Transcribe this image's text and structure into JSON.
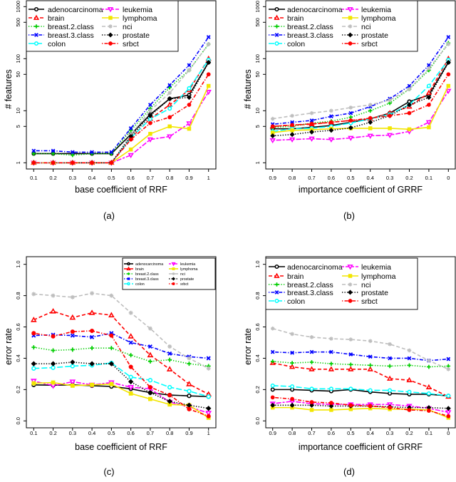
{
  "series_styles": [
    {
      "name": "adenocarcinoma",
      "color": "#000000",
      "line": "solid",
      "marker": "circle-open"
    },
    {
      "name": "brain",
      "color": "#ff0000",
      "line": "dashed",
      "marker": "triangle"
    },
    {
      "name": "breast.2.class",
      "color": "#00cd00",
      "line": "dotted",
      "marker": "plus"
    },
    {
      "name": "breast.3.class",
      "color": "#0000ff",
      "line": "dotdash",
      "marker": "cross"
    },
    {
      "name": "colon",
      "color": "#00ffff",
      "line": "longdash",
      "marker": "circle-open"
    },
    {
      "name": "leukemia",
      "color": "#ff00ff",
      "line": "twodash",
      "marker": "triangle-down"
    },
    {
      "name": "lymphoma",
      "color": "#f2e600",
      "line": "solid",
      "marker": "square"
    },
    {
      "name": "nci",
      "color": "#bebebe",
      "line": "dashed",
      "marker": "star"
    },
    {
      "name": "prostate",
      "color": "#000000",
      "line": "dotted",
      "marker": "diamond"
    },
    {
      "name": "srbct",
      "color": "#ff0000",
      "line": "dotdash",
      "marker": "circle"
    }
  ],
  "chart_data": [
    {
      "type": "line",
      "caption": "(a)",
      "xlabel": "base coefficient of RRF",
      "ylabel": "# features",
      "y_scale": "log",
      "ylim": [
        1,
        1000
      ],
      "x_ticks": [
        "0.1",
        "0.2",
        "0.3",
        "0.4",
        "0.5",
        "0.6",
        "0.7",
        "0.8",
        "0.9",
        "1"
      ],
      "y_ticks": [
        "1",
        "5",
        "10",
        "50",
        "100",
        "500",
        "1000"
      ],
      "legend": "top-left",
      "grid": false,
      "x": [
        0.1,
        0.2,
        0.3,
        0.4,
        0.5,
        0.6,
        0.7,
        0.8,
        0.9,
        1
      ],
      "series": [
        {
          "name": "adenocarcinoma",
          "values": [
            1.5,
            1.5,
            1.5,
            1.5,
            1.5,
            3.5,
            8.5,
            17,
            20,
            85
          ]
        },
        {
          "name": "brain",
          "values": [
            1,
            1,
            1,
            1,
            1,
            3,
            7,
            13,
            25,
            100
          ]
        },
        {
          "name": "breast.2.class",
          "values": [
            1.5,
            1.5,
            1.4,
            1.5,
            1.5,
            4.2,
            11,
            28,
            60,
            190
          ]
        },
        {
          "name": "breast.3.class",
          "values": [
            1.7,
            1.7,
            1.6,
            1.6,
            1.6,
            4.6,
            13,
            31,
            75,
            260
          ]
        },
        {
          "name": "colon",
          "values": [
            1,
            1,
            1,
            1,
            1,
            3,
            7,
            11,
            27,
            95
          ]
        },
        {
          "name": "leukemia",
          "values": [
            1,
            1,
            1,
            1,
            1,
            1.4,
            2.8,
            3.2,
            5.7,
            23
          ]
        },
        {
          "name": "lymphoma",
          "values": [
            1,
            1,
            1,
            1,
            1,
            1.8,
            3.6,
            5,
            4.5,
            30
          ]
        },
        {
          "name": "nci",
          "values": [
            1,
            1,
            1,
            1,
            1,
            3.5,
            10,
            22,
            60,
            190
          ]
        },
        {
          "name": "prostate",
          "values": [
            1,
            1,
            1,
            1,
            1,
            3.2,
            8,
            17,
            18,
            85
          ]
        },
        {
          "name": "srbct",
          "values": [
            1,
            1,
            1,
            1,
            1,
            2.8,
            5.8,
            7.5,
            13,
            50
          ]
        }
      ]
    },
    {
      "type": "line",
      "caption": "(b)",
      "xlabel": "importance coefficient of GRRF",
      "ylabel": "# features",
      "y_scale": "log",
      "ylim": [
        1,
        1000
      ],
      "x_ticks": [
        "0.9",
        "0.8",
        "0.7",
        "0.6",
        "0.5",
        "0.4",
        "0.3",
        "0.2",
        "0.1",
        "0"
      ],
      "y_ticks": [
        "1",
        "5",
        "10",
        "50",
        "100",
        "500",
        "1000"
      ],
      "legend": "top-left",
      "grid": false,
      "x": [
        0.9,
        0.8,
        0.7,
        0.6,
        0.5,
        0.4,
        0.3,
        0.2,
        0.1,
        0
      ],
      "series": [
        {
          "name": "adenocarcinoma",
          "values": [
            4.5,
            4.5,
            4.8,
            5.2,
            6,
            7,
            9,
            15,
            20,
            85
          ]
        },
        {
          "name": "brain",
          "values": [
            5,
            5.3,
            5.5,
            6,
            6.5,
            7,
            9,
            12,
            22,
            100
          ]
        },
        {
          "name": "breast.2.class",
          "values": [
            4.8,
            5,
            5.8,
            6.3,
            7.5,
            10,
            14,
            26,
            60,
            200
          ]
        },
        {
          "name": "breast.3.class",
          "values": [
            5.5,
            6,
            6.5,
            7.8,
            9,
            12,
            17,
            30,
            75,
            260
          ]
        },
        {
          "name": "colon",
          "values": [
            4,
            4.5,
            4.6,
            5,
            5.8,
            7,
            8.5,
            13,
            30,
            95
          ]
        },
        {
          "name": "leukemia",
          "values": [
            2.7,
            2.8,
            2.9,
            2.8,
            3,
            3.3,
            3.4,
            4,
            6,
            24
          ]
        },
        {
          "name": "lymphoma",
          "values": [
            3.8,
            4.2,
            4.3,
            4.5,
            4.6,
            4.6,
            4.6,
            4.4,
            4.8,
            30
          ]
        },
        {
          "name": "nci",
          "values": [
            7,
            8,
            9,
            10,
            11.5,
            13,
            16,
            26,
            65,
            190
          ]
        },
        {
          "name": "prostate",
          "values": [
            3.3,
            3.5,
            3.9,
            4.2,
            4.7,
            6,
            8,
            13,
            18,
            85
          ]
        },
        {
          "name": "srbct",
          "values": [
            5,
            5.3,
            5.6,
            6,
            6.5,
            7.2,
            8,
            9,
            13,
            50
          ]
        }
      ]
    },
    {
      "type": "line",
      "caption": "(c)",
      "xlabel": "base coefficient of RRF",
      "ylabel": "error rate",
      "y_scale": "linear",
      "ylim": [
        0,
        1
      ],
      "x_ticks": [
        "0.1",
        "0.2",
        "0.3",
        "0.4",
        "0.5",
        "0.6",
        "0.7",
        "0.8",
        "0.9",
        "1"
      ],
      "y_ticks": [
        "0.0",
        "0.2",
        "0.4",
        "0.6",
        "0.8",
        "1.0"
      ],
      "legend": "top-right",
      "grid": false,
      "x": [
        0.1,
        0.2,
        0.3,
        0.4,
        0.5,
        0.6,
        0.7,
        0.8,
        0.9,
        1
      ],
      "series": [
        {
          "name": "adenocarcinoma",
          "values": [
            0.23,
            0.228,
            0.23,
            0.225,
            0.22,
            0.205,
            0.18,
            0.165,
            0.16,
            0.155
          ]
        },
        {
          "name": "brain",
          "values": [
            0.645,
            0.7,
            0.66,
            0.69,
            0.675,
            0.54,
            0.42,
            0.33,
            0.235,
            0.17
          ]
        },
        {
          "name": "breast.2.class",
          "values": [
            0.47,
            0.45,
            0.455,
            0.465,
            0.465,
            0.42,
            0.38,
            0.39,
            0.365,
            0.35
          ]
        },
        {
          "name": "breast.3.class",
          "values": [
            0.545,
            0.55,
            0.545,
            0.535,
            0.56,
            0.5,
            0.475,
            0.43,
            0.41,
            0.4
          ]
        },
        {
          "name": "colon",
          "values": [
            0.335,
            0.34,
            0.35,
            0.355,
            0.37,
            0.28,
            0.26,
            0.215,
            0.19,
            0.155
          ]
        },
        {
          "name": "leukemia",
          "values": [
            0.255,
            0.225,
            0.25,
            0.23,
            0.245,
            0.215,
            0.205,
            0.12,
            0.09,
            0.05
          ]
        },
        {
          "name": "lymphoma",
          "values": [
            0.24,
            0.245,
            0.225,
            0.23,
            0.235,
            0.175,
            0.14,
            0.105,
            0.1,
            0.02
          ]
        },
        {
          "name": "nci",
          "values": [
            0.81,
            0.8,
            0.79,
            0.815,
            0.8,
            0.69,
            0.59,
            0.475,
            0.4,
            0.335
          ]
        },
        {
          "name": "prostate",
          "values": [
            0.365,
            0.365,
            0.375,
            0.365,
            0.365,
            0.25,
            0.18,
            0.125,
            0.1,
            0.08
          ]
        },
        {
          "name": "srbct",
          "values": [
            0.56,
            0.54,
            0.57,
            0.575,
            0.545,
            0.345,
            0.215,
            0.165,
            0.075,
            0.03
          ]
        }
      ]
    },
    {
      "type": "line",
      "caption": "(d)",
      "xlabel": "importance coefficient of GRRF",
      "ylabel": "error rate",
      "y_scale": "linear",
      "ylim": [
        0,
        1
      ],
      "x_ticks": [
        "0.9",
        "0.8",
        "0.7",
        "0.6",
        "0.5",
        "0.4",
        "0.3",
        "0.2",
        "0.1",
        "0"
      ],
      "y_ticks": [
        "0.0",
        "0.2",
        "0.4",
        "0.6",
        "0.8",
        "1.0"
      ],
      "legend": "top-left",
      "grid": false,
      "x": [
        0.9,
        0.8,
        0.7,
        0.6,
        0.5,
        0.4,
        0.3,
        0.2,
        0.1,
        0
      ],
      "series": [
        {
          "name": "adenocarcinoma",
          "values": [
            0.2,
            0.2,
            0.195,
            0.19,
            0.2,
            0.185,
            0.175,
            0.17,
            0.17,
            0.16
          ]
        },
        {
          "name": "brain",
          "values": [
            0.37,
            0.345,
            0.33,
            0.33,
            0.33,
            0.33,
            0.27,
            0.26,
            0.215,
            0.155
          ]
        },
        {
          "name": "breast.2.class",
          "values": [
            0.38,
            0.37,
            0.375,
            0.365,
            0.36,
            0.355,
            0.35,
            0.355,
            0.345,
            0.35
          ]
        },
        {
          "name": "breast.3.class",
          "values": [
            0.44,
            0.435,
            0.44,
            0.44,
            0.425,
            0.41,
            0.4,
            0.4,
            0.385,
            0.395
          ]
        },
        {
          "name": "colon",
          "values": [
            0.225,
            0.22,
            0.205,
            0.205,
            0.205,
            0.195,
            0.195,
            0.185,
            0.175,
            0.16
          ]
        },
        {
          "name": "leukemia",
          "values": [
            0.11,
            0.125,
            0.11,
            0.105,
            0.105,
            0.105,
            0.105,
            0.095,
            0.08,
            0.055
          ]
        },
        {
          "name": "lymphoma",
          "values": [
            0.085,
            0.085,
            0.07,
            0.07,
            0.075,
            0.08,
            0.075,
            0.075,
            0.07,
            0.02
          ]
        },
        {
          "name": "nci",
          "values": [
            0.59,
            0.555,
            0.535,
            0.525,
            0.52,
            0.51,
            0.49,
            0.45,
            0.385,
            0.33
          ]
        },
        {
          "name": "prostate",
          "values": [
            0.1,
            0.1,
            0.1,
            0.095,
            0.095,
            0.095,
            0.09,
            0.085,
            0.085,
            0.08
          ]
        },
        {
          "name": "srbct",
          "values": [
            0.15,
            0.14,
            0.12,
            0.115,
            0.1,
            0.095,
            0.085,
            0.07,
            0.065,
            0.03
          ]
        }
      ]
    }
  ]
}
